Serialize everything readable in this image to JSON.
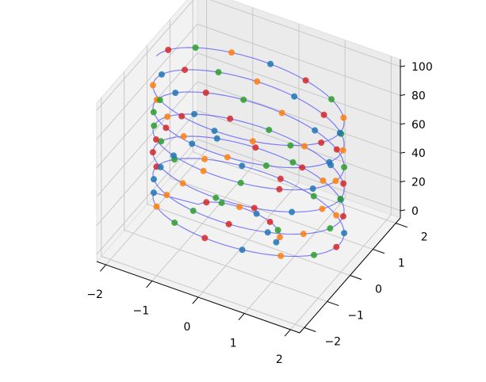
{
  "chart_data": {
    "type": "scatter",
    "projection": "3d",
    "title": "",
    "xlabel": "",
    "ylabel": "",
    "zlabel": "",
    "xlim": [
      -2.2,
      2.2
    ],
    "ylim": [
      -2.2,
      2.2
    ],
    "zlim": [
      -5,
      105
    ],
    "x_ticks": [
      -2,
      -1,
      0,
      1,
      2
    ],
    "x_tick_labels": [
      "−2",
      "−1",
      "0",
      "1",
      "2"
    ],
    "y_ticks": [
      -2,
      -1,
      0,
      1,
      2
    ],
    "y_tick_labels": [
      "−2",
      "−1",
      "0",
      "1",
      "2"
    ],
    "z_ticks": [
      0,
      20,
      40,
      60,
      80,
      100
    ],
    "z_tick_labels": [
      "0",
      "20",
      "40",
      "60",
      "80",
      "100"
    ],
    "grid": true,
    "legend": "none",
    "helix": {
      "description_free": true,
      "t_start": 0,
      "t_end": 100,
      "points": 400,
      "radius_min": 0.6,
      "radius_max": 2.0,
      "radius_cutoff_t": 8,
      "turns": 6.5,
      "line_color": "#2020ff",
      "line_alpha": 0.55
    },
    "series": [
      {
        "color": "#1f77b4"
      },
      {
        "color": "#ff7f0e"
      },
      {
        "color": "#2ca02c"
      },
      {
        "color": "#d62728"
      }
    ]
  }
}
